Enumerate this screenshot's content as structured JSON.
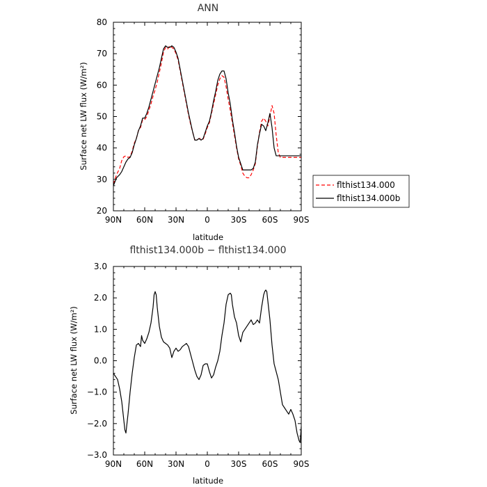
{
  "chart_data": [
    {
      "type": "line",
      "title": "ANN",
      "xlabel": "latitude",
      "ylabel": "Surface net LW flux (W/m²)",
      "xlim": [
        90,
        -90
      ],
      "ylim": [
        20,
        80
      ],
      "xticks": [
        90,
        60,
        30,
        0,
        -30,
        -60,
        -90
      ],
      "xtick_labels": [
        "90N",
        "60N",
        "30N",
        "0",
        "30S",
        "60S",
        "90S"
      ],
      "yticks": [
        20,
        30,
        40,
        50,
        60,
        70,
        80
      ],
      "ytick_labels": [
        "20",
        "30",
        "40",
        "50",
        "60",
        "70",
        "80"
      ],
      "legend_position": "right, outside plot",
      "series": [
        {
          "name": "flthist134.000",
          "color": "#ff0000",
          "style": "dashed",
          "x": [
            90,
            87,
            84,
            82,
            80,
            78,
            76,
            74,
            72,
            70,
            68,
            66,
            64,
            62,
            60,
            58,
            56,
            54,
            52,
            50,
            48,
            46,
            44,
            42,
            40,
            38,
            36,
            34,
            32,
            30,
            28,
            26,
            24,
            22,
            20,
            18,
            16,
            14,
            12,
            10,
            8,
            6,
            4,
            2,
            0,
            -2,
            -4,
            -6,
            -8,
            -10,
            -12,
            -14,
            -16,
            -18,
            -20,
            -22,
            -24,
            -26,
            -28,
            -30,
            -32,
            -34,
            -36,
            -38,
            -40,
            -42,
            -44,
            -46,
            -48,
            -50,
            -52,
            -54,
            -56,
            -58,
            -60,
            -62,
            -64,
            -66,
            -68,
            -70,
            -72,
            -74,
            -76,
            -78,
            -80,
            -82,
            -84,
            -86,
            -88,
            -90
          ],
          "y": [
            28.5,
            31.5,
            33.5,
            36.0,
            37.2,
            37.5,
            37.0,
            37.2,
            39.0,
            41.5,
            43.0,
            45.5,
            46.5,
            49.0,
            49.0,
            50.0,
            52.0,
            54.0,
            56.5,
            58.5,
            61.0,
            64.0,
            67.0,
            70.5,
            72.0,
            71.5,
            72.5,
            72.0,
            71.5,
            70.0,
            68.0,
            64.5,
            61.0,
            57.5,
            54.0,
            50.5,
            47.5,
            45.0,
            42.5,
            42.5,
            43.0,
            43.0,
            42.8,
            44.5,
            46.5,
            48.0,
            51.0,
            54.0,
            57.0,
            60.0,
            62.0,
            63.0,
            62.5,
            59.5,
            55.5,
            52.0,
            48.0,
            44.0,
            40.0,
            36.5,
            34.5,
            32.0,
            31.0,
            30.5,
            30.5,
            31.5,
            33.0,
            35.0,
            40.5,
            45.0,
            48.5,
            49.5,
            48.5,
            47.0,
            50.0,
            53.5,
            51.0,
            44.0,
            38.5,
            37.0,
            37.0,
            37.0,
            37.0,
            37.0,
            37.0,
            37.0,
            37.0,
            37.0,
            37.0,
            37.0
          ]
        },
        {
          "name": "flthist134.000b",
          "color": "#000000",
          "style": "solid",
          "x": [
            90,
            87,
            84,
            82,
            80,
            78,
            76,
            74,
            72,
            70,
            68,
            66,
            64,
            62,
            60,
            58,
            56,
            54,
            52,
            50,
            48,
            46,
            44,
            42,
            40,
            38,
            36,
            34,
            32,
            30,
            28,
            26,
            24,
            22,
            20,
            18,
            16,
            14,
            12,
            10,
            8,
            6,
            4,
            2,
            0,
            -2,
            -4,
            -6,
            -8,
            -10,
            -12,
            -14,
            -16,
            -18,
            -20,
            -22,
            -24,
            -26,
            -28,
            -30,
            -32,
            -34,
            -36,
            -38,
            -40,
            -42,
            -44,
            -46,
            -48,
            -50,
            -52,
            -54,
            -56,
            -58,
            -60,
            -62,
            -64,
            -66,
            -68,
            -70,
            -72,
            -74,
            -76,
            -78,
            -80,
            -82,
            -84,
            -86,
            -88,
            -90
          ],
          "y": [
            28.0,
            30.5,
            31.5,
            32.5,
            34.0,
            35.5,
            36.5,
            37.0,
            38.5,
            41.0,
            43.0,
            45.5,
            47.0,
            49.5,
            49.5,
            51.0,
            53.0,
            55.5,
            58.0,
            60.5,
            63.0,
            65.5,
            68.5,
            71.5,
            72.5,
            72.0,
            72.0,
            72.5,
            72.0,
            70.5,
            68.5,
            65.0,
            61.5,
            58.0,
            54.5,
            51.0,
            48.0,
            45.0,
            42.5,
            42.5,
            43.0,
            42.5,
            43.0,
            45.0,
            47.0,
            48.5,
            51.5,
            55.0,
            58.0,
            61.5,
            63.5,
            64.5,
            64.5,
            62.0,
            57.5,
            54.0,
            49.0,
            45.0,
            40.5,
            37.0,
            35.0,
            33.0,
            33.0,
            33.0,
            33.0,
            33.0,
            33.5,
            35.5,
            41.0,
            44.5,
            47.5,
            47.0,
            45.5,
            48.0,
            51.0,
            46.5,
            40.0,
            37.5,
            37.5,
            37.5,
            37.5,
            37.5,
            37.5,
            37.5,
            37.5,
            37.5,
            37.5,
            37.5,
            37.5,
            37.5
          ]
        }
      ]
    },
    {
      "type": "line",
      "title": "flthist134.000b − flthist134.000",
      "xlabel": "latitude",
      "ylabel": "Surface net LW flux (W/m²)",
      "xlim": [
        90,
        -90
      ],
      "ylim": [
        -3.0,
        3.0
      ],
      "xticks": [
        90,
        60,
        30,
        0,
        -30,
        -60,
        -90
      ],
      "xtick_labels": [
        "90N",
        "60N",
        "30N",
        "0",
        "30S",
        "60S",
        "90S"
      ],
      "yticks": [
        -3.0,
        -2.0,
        -1.0,
        0.0,
        1.0,
        2.0,
        3.0
      ],
      "ytick_labels": [
        "−3.0",
        "−2.0",
        "−1.0",
        "0.0",
        "1.0",
        "2.0",
        "3.0"
      ],
      "series": [
        {
          "color": "#000000",
          "style": "solid",
          "x": [
            90,
            88,
            86,
            84,
            82,
            80,
            79,
            78,
            77,
            76,
            74,
            72,
            70,
            68,
            66,
            64,
            63,
            62,
            60,
            58,
            56,
            54,
            52,
            51,
            50,
            49,
            48,
            46,
            44,
            42,
            40,
            38,
            36,
            34,
            32,
            30,
            28,
            26,
            24,
            22,
            20,
            18,
            16,
            14,
            12,
            10,
            8,
            6,
            4,
            2,
            0,
            -2,
            -4,
            -6,
            -8,
            -10,
            -12,
            -14,
            -16,
            -18,
            -20,
            -22,
            -23,
            -24,
            -26,
            -28,
            -30,
            -32,
            -34,
            -36,
            -38,
            -40,
            -42,
            -44,
            -46,
            -48,
            -50,
            -52,
            -54,
            -55,
            -56,
            -57,
            -58,
            -60,
            -62,
            -64,
            -66,
            -68,
            -70,
            -72,
            -74,
            -76,
            -78,
            -80,
            -82,
            -84,
            -86,
            -88,
            -89,
            -90
          ],
          "y": [
            -0.4,
            -0.5,
            -0.6,
            -0.9,
            -1.3,
            -1.9,
            -2.2,
            -2.3,
            -2.0,
            -1.7,
            -1.0,
            -0.4,
            0.1,
            0.5,
            0.55,
            0.45,
            0.8,
            0.65,
            0.55,
            0.7,
            0.9,
            1.2,
            1.7,
            2.1,
            2.2,
            2.1,
            1.7,
            1.1,
            0.75,
            0.6,
            0.55,
            0.5,
            0.4,
            0.1,
            0.3,
            0.4,
            0.3,
            0.35,
            0.45,
            0.5,
            0.55,
            0.45,
            0.2,
            -0.05,
            -0.3,
            -0.5,
            -0.6,
            -0.45,
            -0.15,
            -0.1,
            -0.1,
            -0.35,
            -0.55,
            -0.45,
            -0.2,
            0.0,
            0.3,
            0.8,
            1.2,
            1.8,
            2.1,
            2.15,
            2.1,
            1.8,
            1.4,
            1.2,
            0.8,
            0.6,
            0.9,
            1.0,
            1.1,
            1.2,
            1.3,
            1.15,
            1.2,
            1.3,
            1.2,
            1.7,
            2.1,
            2.2,
            2.25,
            2.2,
            1.9,
            1.3,
            0.5,
            -0.1,
            -0.35,
            -0.6,
            -1.0,
            -1.4,
            -1.5,
            -1.6,
            -1.7,
            -1.55,
            -1.7,
            -1.9,
            -2.3,
            -2.55,
            -2.6,
            -2.1
          ]
        }
      ]
    }
  ],
  "legend": {
    "labels": [
      "flthist134.000",
      "flthist134.000b"
    ]
  }
}
